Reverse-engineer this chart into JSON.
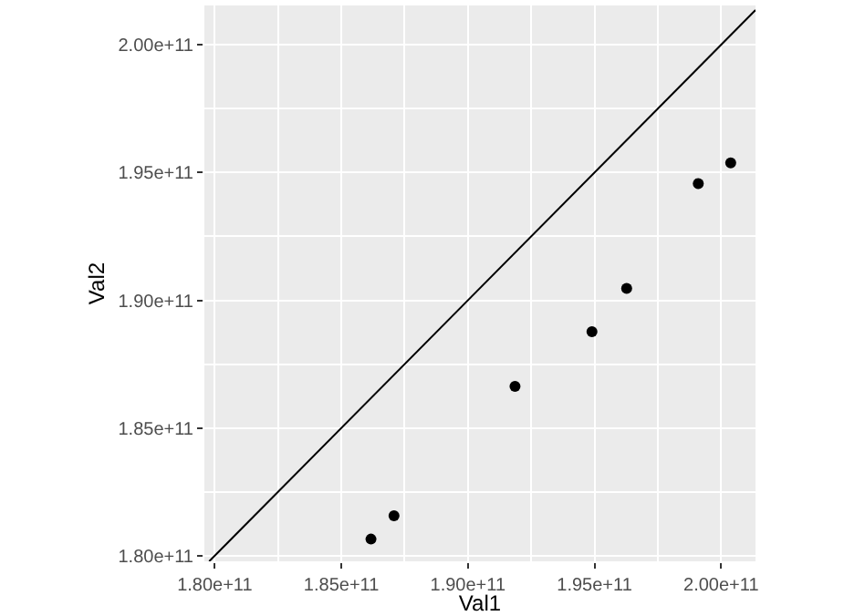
{
  "chart_data": {
    "type": "scatter",
    "xlabel": "Val1",
    "ylabel": "Val2",
    "x": [
      186170000000,
      187080000000,
      191860000000,
      194900000000,
      196270000000,
      199100000000,
      200380000000
    ],
    "series": [
      {
        "color": "#000000",
        "marker": "circle",
        "values": [
          180650000000,
          181560000000,
          186630000000,
          188770000000,
          190460000000,
          194570000000,
          195380000000
        ]
      },
      {
        "type": "line",
        "color": "#000000",
        "marker": "none",
        "line_style": "solid",
        "x": [
          179780000000,
          201360000000
        ],
        "values": [
          179780000000,
          201360000000
        ]
      }
    ],
    "xlim": [
      179590000000,
      201360000000
    ],
    "ylim": [
      179780000000,
      201540000000
    ],
    "xticks": [
      {
        "value": 180000000000,
        "label": "1.80e+11"
      },
      {
        "value": 185000000000,
        "label": "1.85e+11"
      },
      {
        "value": 190000000000,
        "label": "1.90e+11"
      },
      {
        "value": 195000000000,
        "label": "1.95e+11"
      },
      {
        "value": 200000000000,
        "label": "2.00e+11"
      }
    ],
    "yticks": [
      {
        "value": 180000000000,
        "label": "1.80e+11"
      },
      {
        "value": 185000000000,
        "label": "1.85e+11"
      },
      {
        "value": 190000000000,
        "label": "1.90e+11"
      },
      {
        "value": 195000000000,
        "label": "1.95e+11"
      },
      {
        "value": 200000000000,
        "label": "2.00e+11"
      }
    ],
    "grid": true
  }
}
